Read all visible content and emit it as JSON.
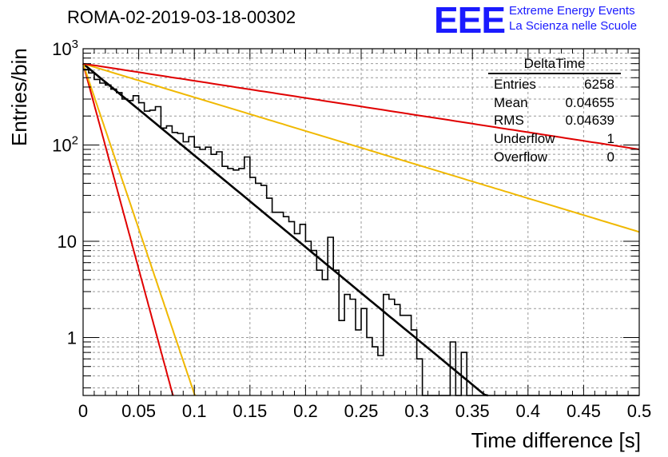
{
  "chart_data": {
    "type": "histogram",
    "title": "ROMA-02-2019-03-18-00302",
    "xlabel": "Time difference [s]",
    "ylabel": "Entries/bin",
    "yscale": "log",
    "xlim": [
      0,
      0.5
    ],
    "ylim": [
      0.25,
      1000
    ],
    "grid": true,
    "x_ticks": [
      "0",
      "0.05",
      "0.1",
      "0.15",
      "0.2",
      "0.25",
      "0.3",
      "0.35",
      "0.4",
      "0.45",
      "0.5"
    ],
    "y_ticks": [
      {
        "value": 1000,
        "label": "10",
        "sup": "3"
      },
      {
        "value": 100,
        "label": "10",
        "sup": "2"
      },
      {
        "value": 10,
        "label": "10",
        "sup": ""
      },
      {
        "value": 1,
        "label": "1",
        "sup": ""
      }
    ],
    "histogram": {
      "name": "DeltaTime",
      "bin_width": 0.005,
      "x_start": 0,
      "values": [
        610,
        560,
        480,
        440,
        420,
        380,
        350,
        300,
        290,
        325,
        275,
        225,
        230,
        250,
        150,
        158,
        135,
        132,
        108,
        122,
        95,
        90,
        95,
        80,
        85,
        60,
        57,
        55,
        57,
        75,
        46,
        40,
        38,
        28,
        20,
        20,
        18,
        16,
        12,
        15,
        10,
        8,
        5,
        4,
        11,
        5,
        1.5,
        2.8,
        2.5,
        1.2,
        2,
        1,
        0.8,
        0.65,
        2.8,
        2.5,
        2.2,
        1.7,
        1.7,
        1.2,
        0.6,
        0.15,
        0.12,
        0.1,
        0.15,
        0.18,
        0.9,
        0.1,
        0.7,
        0.15,
        0.1,
        0.1,
        0.1,
        0.1,
        0.1,
        0.1,
        0.1,
        0.1,
        0.1,
        0.1,
        0.1,
        0.1,
        0.1,
        0.1,
        0.1,
        0.1,
        0.1,
        0.1,
        0.1,
        0.1,
        0.1,
        0.1,
        0.1,
        0.1,
        0.1,
        0.1,
        0.1,
        0.1,
        0.1,
        0.1
      ]
    },
    "fits": [
      {
        "name": "fit",
        "color": "#000000",
        "shape": "exponential",
        "y0": 700,
        "x1": 0.36,
        "y1": 0.26,
        "x_end": 0.364
      },
      {
        "name": "upper-fast-red",
        "color": "#e00000",
        "shape": "exponential",
        "y0": 700,
        "x1": 0.08,
        "y1": 0.27,
        "x_end": 0.081
      },
      {
        "name": "upper-fast-yellow",
        "color": "#f0b800",
        "shape": "exponential",
        "y0": 700,
        "x1": 0.1,
        "y1": 0.26,
        "x_end": 0.101
      },
      {
        "name": "slow-yellow",
        "color": "#f0b800",
        "shape": "exponential",
        "y0": 700,
        "x1": 0.5,
        "y1": 12.5,
        "x_end": 0.5
      },
      {
        "name": "slow-red",
        "color": "#e00000",
        "shape": "exponential",
        "y0": 700,
        "x1": 0.5,
        "y1": 90,
        "x_end": 0.5
      }
    ],
    "stats": {
      "name": "DeltaTime",
      "rows": [
        {
          "label": "Entries",
          "value": "6258"
        },
        {
          "label": "Mean",
          "value": "0.04655"
        },
        {
          "label": "RMS",
          "value": "0.04639"
        },
        {
          "label": "Underflow",
          "value": "1"
        },
        {
          "label": "Overflow",
          "value": "0"
        }
      ]
    }
  },
  "logo": {
    "mark": "EEE",
    "line1": "Extreme Energy Events",
    "line2": "La Scienza nelle Scuole"
  }
}
